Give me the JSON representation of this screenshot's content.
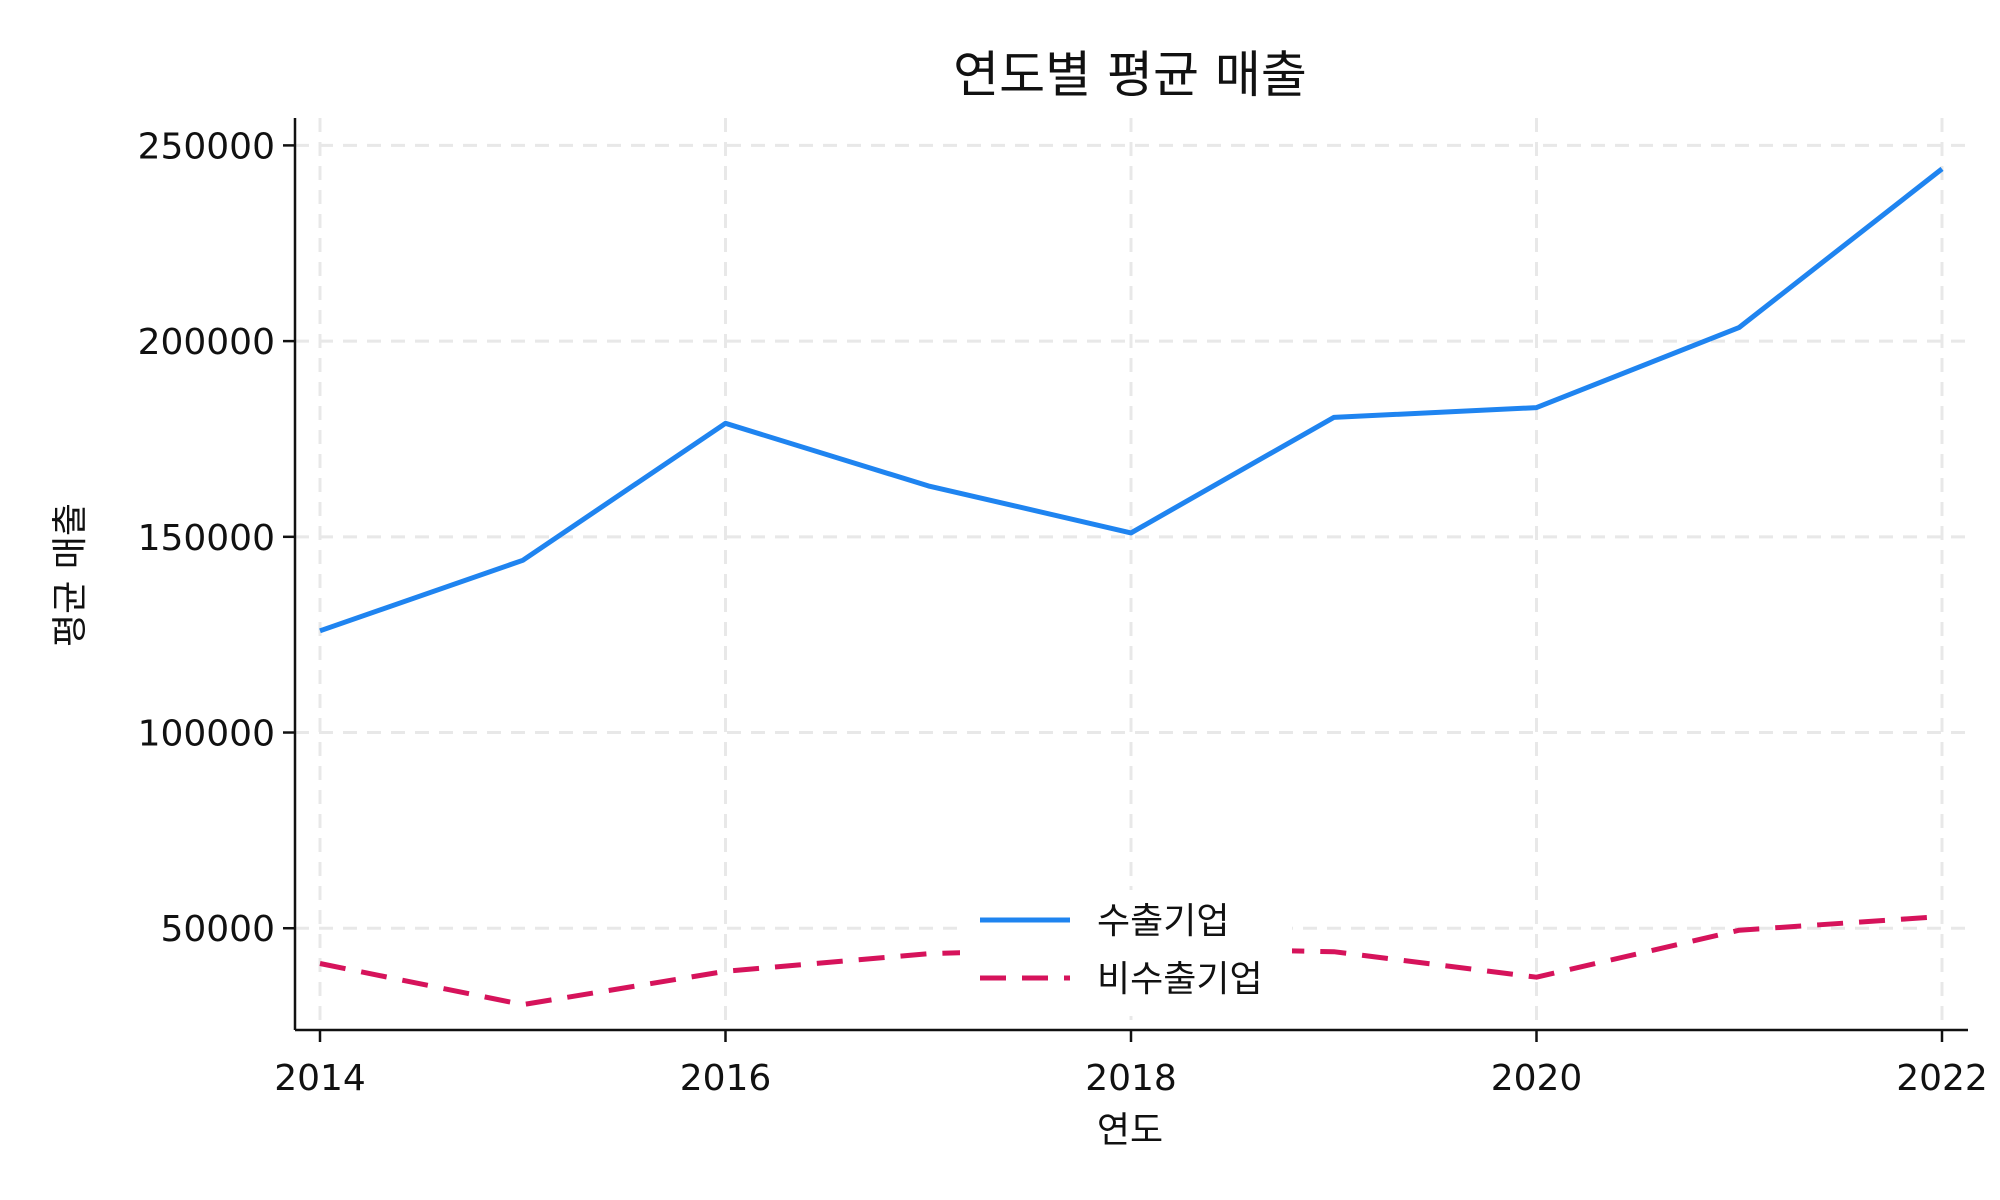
{
  "chart_data": {
    "type": "line",
    "title": "연도별 평균 매출",
    "xlabel": "연도",
    "ylabel": "평균 매출",
    "x": [
      2014,
      2015,
      2016,
      2017,
      2018,
      2019,
      2020,
      2021,
      2022
    ],
    "xlim": [
      2014,
      2022
    ],
    "ylim": [
      24000,
      257000
    ],
    "x_ticks": [
      2014,
      2016,
      2018,
      2020,
      2022
    ],
    "x_tick_labels": [
      "2014",
      "2016",
      "2018",
      "2020",
      "2022"
    ],
    "y_ticks": [
      50000,
      100000,
      150000,
      200000,
      250000
    ],
    "y_tick_labels": [
      "50000",
      "100000",
      "150000",
      "200000",
      "250000"
    ],
    "grid": true,
    "legend_position": "bottom-center",
    "series": [
      {
        "name": "수출기업",
        "values": [
          126000,
          144000,
          179000,
          163000,
          151000,
          180500,
          183000,
          203500,
          244000
        ],
        "color": "#1f84f0",
        "dash": "solid"
      },
      {
        "name": "비수출기업",
        "values": [
          41000,
          30500,
          39000,
          43500,
          45000,
          44000,
          37500,
          49500,
          53000
        ],
        "color": "#d6135b",
        "dash": "dashed"
      }
    ]
  }
}
